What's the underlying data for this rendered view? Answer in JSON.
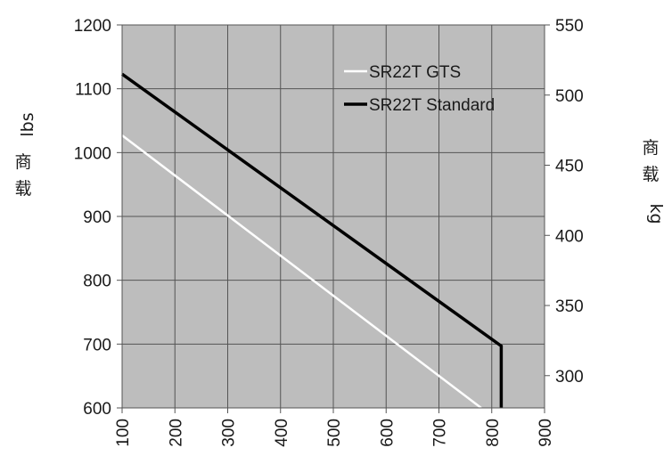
{
  "chart_data": {
    "type": "line",
    "title": "",
    "x": [
      100,
      200,
      300,
      400,
      500,
      600,
      700,
      800,
      900
    ],
    "xlim": [
      100,
      900
    ],
    "ylim": [
      600,
      1200
    ],
    "yticks": [
      600,
      700,
      800,
      900,
      1000,
      1100,
      1200
    ],
    "y2lim": [
      277,
      550
    ],
    "y2ticks": [
      300,
      350,
      400,
      450,
      500,
      550
    ],
    "ylabel": "lbs",
    "ylabel_cn": "商载",
    "y2label_cn": "商载",
    "y2label": "kg",
    "grid": true,
    "legend_position": "top-right",
    "series": [
      {
        "name": "SR22T GTS",
        "color": "#ffffff",
        "points": [
          [
            100,
            1027
          ],
          [
            780,
            600
          ]
        ]
      },
      {
        "name": "SR22T Standard",
        "color": "#000000",
        "points": [
          [
            100,
            1123
          ],
          [
            818,
            697
          ],
          [
            818,
            600
          ]
        ]
      }
    ]
  },
  "colors": {
    "plot_background": "#bdbdbd",
    "grid": "#555555"
  }
}
